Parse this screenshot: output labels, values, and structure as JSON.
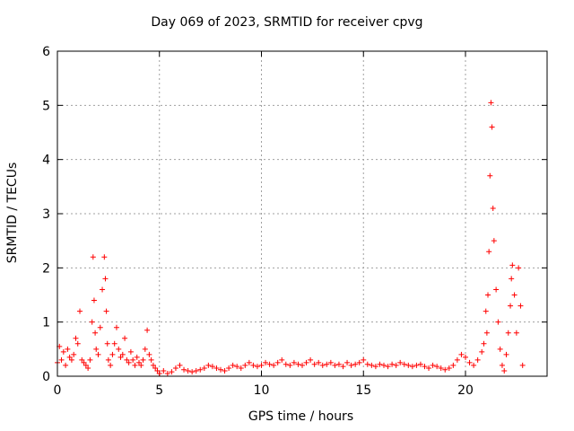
{
  "chart_data": {
    "type": "scatter",
    "title": "Day 069 of 2023, SRMTID for receiver cpvg",
    "xlabel": "GPS time / hours",
    "ylabel": "SRMTID / TECUs",
    "xlim": [
      0,
      24
    ],
    "ylim": [
      0,
      6
    ],
    "xticks": [
      0,
      5,
      10,
      15,
      20
    ],
    "yticks": [
      0,
      1,
      2,
      3,
      4,
      5,
      6
    ],
    "grid": true,
    "marker": "+",
    "color": "#ff0000",
    "series": [
      {
        "name": "SRMTID",
        "x": [
          0.0,
          0.1,
          0.2,
          0.3,
          0.4,
          0.5,
          0.6,
          0.7,
          0.8,
          0.9,
          1.0,
          1.1,
          1.2,
          1.3,
          1.4,
          1.5,
          1.6,
          1.7,
          1.75,
          1.8,
          1.85,
          1.9,
          2.0,
          2.1,
          2.2,
          2.3,
          2.35,
          2.4,
          2.45,
          2.5,
          2.6,
          2.7,
          2.8,
          2.9,
          3.0,
          3.1,
          3.2,
          3.3,
          3.4,
          3.5,
          3.6,
          3.7,
          3.8,
          3.9,
          4.0,
          4.1,
          4.2,
          4.3,
          4.4,
          4.5,
          4.6,
          4.7,
          4.8,
          4.9,
          5.0,
          5.2,
          5.4,
          5.6,
          5.8,
          6.0,
          6.2,
          6.4,
          6.6,
          6.8,
          7.0,
          7.2,
          7.4,
          7.6,
          7.8,
          8.0,
          8.2,
          8.4,
          8.6,
          8.8,
          9.0,
          9.2,
          9.4,
          9.6,
          9.8,
          10.0,
          10.2,
          10.4,
          10.6,
          10.8,
          11.0,
          11.2,
          11.4,
          11.6,
          11.8,
          12.0,
          12.2,
          12.4,
          12.6,
          12.8,
          13.0,
          13.2,
          13.4,
          13.6,
          13.8,
          14.0,
          14.2,
          14.4,
          14.6,
          14.8,
          15.0,
          15.2,
          15.4,
          15.6,
          15.8,
          16.0,
          16.2,
          16.4,
          16.6,
          16.8,
          17.0,
          17.2,
          17.4,
          17.6,
          17.8,
          18.0,
          18.2,
          18.4,
          18.6,
          18.8,
          19.0,
          19.2,
          19.4,
          19.6,
          19.8,
          20.0,
          20.2,
          20.4,
          20.6,
          20.8,
          20.9,
          21.0,
          21.05,
          21.1,
          21.15,
          21.2,
          21.25,
          21.3,
          21.35,
          21.4,
          21.5,
          21.6,
          21.7,
          21.8,
          21.9,
          22.0,
          22.1,
          22.2,
          22.25,
          22.3,
          22.4,
          22.5,
          22.6,
          22.7,
          22.8
        ],
        "y": [
          0.25,
          0.55,
          0.3,
          0.45,
          0.2,
          0.5,
          0.35,
          0.3,
          0.4,
          0.7,
          0.6,
          1.2,
          0.3,
          0.25,
          0.2,
          0.15,
          0.3,
          1.0,
          2.2,
          1.4,
          0.8,
          0.5,
          0.4,
          0.9,
          1.6,
          2.2,
          1.8,
          1.2,
          0.6,
          0.3,
          0.2,
          0.4,
          0.6,
          0.9,
          0.5,
          0.35,
          0.4,
          0.7,
          0.3,
          0.25,
          0.45,
          0.3,
          0.2,
          0.35,
          0.25,
          0.2,
          0.3,
          0.5,
          0.85,
          0.4,
          0.3,
          0.2,
          0.15,
          0.1,
          0.05,
          0.1,
          0.05,
          0.08,
          0.15,
          0.2,
          0.12,
          0.1,
          0.08,
          0.1,
          0.12,
          0.15,
          0.2,
          0.18,
          0.15,
          0.12,
          0.1,
          0.15,
          0.2,
          0.18,
          0.15,
          0.2,
          0.25,
          0.2,
          0.18,
          0.2,
          0.25,
          0.22,
          0.2,
          0.25,
          0.3,
          0.22,
          0.2,
          0.25,
          0.22,
          0.2,
          0.25,
          0.3,
          0.22,
          0.25,
          0.2,
          0.22,
          0.25,
          0.2,
          0.22,
          0.18,
          0.25,
          0.2,
          0.22,
          0.25,
          0.3,
          0.22,
          0.2,
          0.18,
          0.22,
          0.2,
          0.18,
          0.22,
          0.2,
          0.25,
          0.22,
          0.2,
          0.18,
          0.2,
          0.22,
          0.18,
          0.15,
          0.2,
          0.18,
          0.15,
          0.12,
          0.15,
          0.2,
          0.3,
          0.4,
          0.35,
          0.25,
          0.2,
          0.3,
          0.45,
          0.6,
          1.2,
          0.8,
          1.5,
          2.3,
          3.7,
          5.05,
          4.6,
          3.1,
          2.5,
          1.6,
          1.0,
          0.5,
          0.2,
          0.1,
          0.4,
          0.8,
          1.3,
          1.8,
          2.05,
          1.5,
          0.8,
          2.0,
          1.3,
          0.2
        ]
      }
    ]
  }
}
